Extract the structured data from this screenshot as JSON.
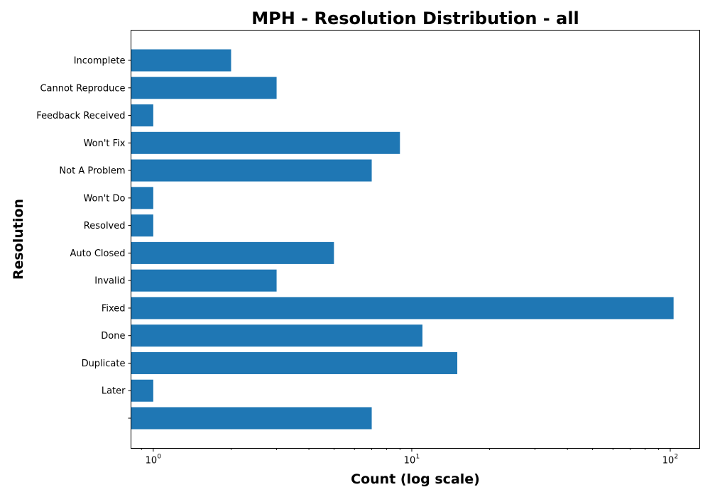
{
  "chart_data": {
    "type": "bar",
    "orientation": "horizontal",
    "title": "MPH - Resolution Distribution - all",
    "xlabel": "Count (log scale)",
    "ylabel": "Resolution",
    "x_scale": "log",
    "xlim": [
      0.82,
      130
    ],
    "x_tick_base": "10",
    "x_tick_exponents": [
      "0",
      "1",
      "2"
    ],
    "categories": [
      "Incomplete",
      "Cannot Reproduce",
      "Feedback Received",
      "Won't Fix",
      "Not A Problem",
      "Won't Do",
      "Resolved",
      "Auto Closed",
      "Invalid",
      "Fixed",
      "Done",
      "Duplicate",
      "Later",
      ""
    ],
    "values": [
      2,
      3,
      1,
      9,
      7,
      1,
      1,
      5,
      3,
      103,
      11,
      15,
      1,
      7
    ],
    "bar_color": "#1f77b4",
    "grid": false,
    "legend": "none"
  }
}
